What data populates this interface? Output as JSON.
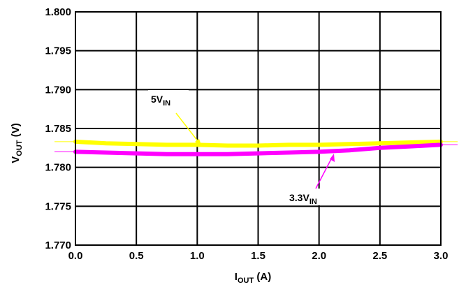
{
  "chart_data": {
    "type": "line",
    "title": "",
    "xlabel": {
      "main": "I",
      "sub": "OUT",
      "unit": " (A)"
    },
    "ylabel": {
      "main": "V",
      "sub": "OUT",
      "unit": " (V)"
    },
    "xlim": [
      0.0,
      3.0
    ],
    "ylim": [
      1.77,
      1.8
    ],
    "x_ticks": [
      "0.0",
      "0.5",
      "1.0",
      "1.5",
      "2.0",
      "2.5",
      "3.0"
    ],
    "y_ticks": [
      "1.800",
      "1.795",
      "1.790",
      "1.785",
      "1.780",
      "1.775",
      "1.770"
    ],
    "grid": true,
    "series": [
      {
        "name": {
          "main": "5V",
          "sub": "IN"
        },
        "color": "#ffff00",
        "x": [
          0.0,
          0.25,
          0.5,
          0.75,
          1.0,
          1.25,
          1.5,
          1.75,
          2.0,
          2.25,
          2.5,
          2.75,
          3.0
        ],
        "y": [
          1.7833,
          1.7831,
          1.783,
          1.7829,
          1.7829,
          1.7828,
          1.7828,
          1.7829,
          1.7829,
          1.783,
          1.7831,
          1.7832,
          1.7833
        ]
      },
      {
        "name": {
          "main": "3.3V",
          "sub": "IN"
        },
        "color": "#ff00ff",
        "x": [
          0.0,
          0.25,
          0.5,
          0.75,
          1.0,
          1.25,
          1.5,
          1.75,
          2.0,
          2.25,
          2.5,
          2.75,
          3.0
        ],
        "y": [
          1.782,
          1.7819,
          1.7818,
          1.7817,
          1.7817,
          1.7817,
          1.7818,
          1.7819,
          1.782,
          1.7822,
          1.7825,
          1.7827,
          1.7829
        ]
      }
    ]
  }
}
